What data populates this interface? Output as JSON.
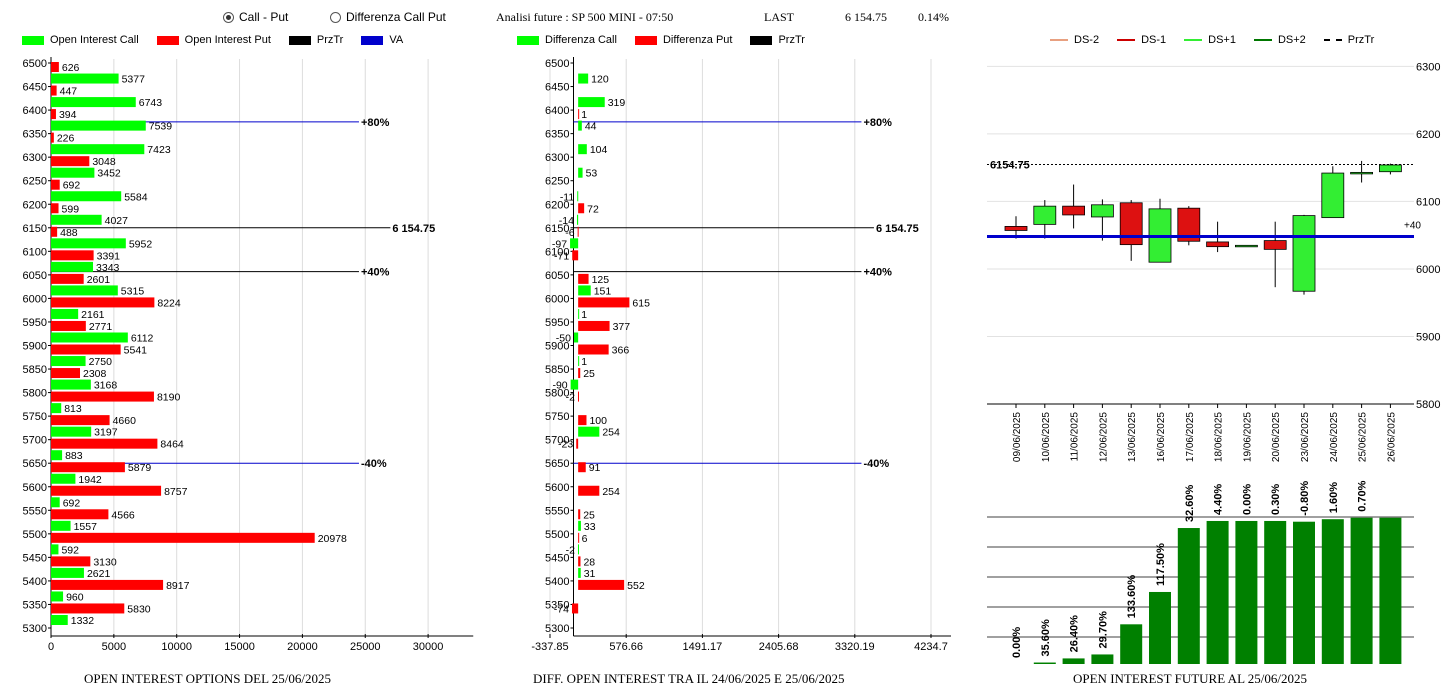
{
  "header": {
    "radio_call_put": "Call - Put",
    "radio_diff": "Differenza Call Put",
    "selected": "call_put",
    "title": "Analisi future : SP 500 MINI - 07:50",
    "last_label": "LAST",
    "last_value": "6 154.75",
    "last_change": "0.14%"
  },
  "colors": {
    "call": "#00ff00",
    "put": "#ff0000",
    "prztr": "#000000",
    "va": "#0000cc",
    "ds_minus2": "#e8a080",
    "ds_minus1": "#cc0000",
    "ds_plus1": "#33ee33",
    "ds_plus2": "#007700",
    "oi_bar": "#008000"
  },
  "chart_data": [
    {
      "id": "oi_options",
      "type": "bar",
      "orientation": "horizontal",
      "title": "OPEN INTEREST OPTIONS DEL 25/06/2025",
      "legend": [
        "Open Interest Call",
        "Open Interest Put",
        "PrzTr",
        "VA"
      ],
      "legend_placement": "top-left",
      "categories": [
        "6500",
        "6450",
        "6400",
        "6350",
        "6300",
        "6250",
        "6200",
        "6150",
        "6100",
        "6050",
        "6000",
        "5950",
        "5900",
        "5850",
        "5800",
        "5750",
        "5700",
        "5650",
        "5600",
        "5550",
        "5500",
        "5450",
        "5400",
        "5350",
        "5300"
      ],
      "series": [
        {
          "name": "Open Interest Call",
          "values": [
            null,
            5377,
            6743,
            7539,
            7423,
            3452,
            5584,
            4027,
            5952,
            3343,
            5315,
            2161,
            6112,
            2750,
            3168,
            813,
            3197,
            883,
            1942,
            692,
            1557,
            592,
            2621,
            960,
            1332
          ]
        },
        {
          "name": "Open Interest Put",
          "values": [
            626,
            447,
            394,
            226,
            3048,
            692,
            599,
            488,
            3391,
            2601,
            8224,
            2771,
            5541,
            2308,
            8190,
            4660,
            8464,
            5879,
            8757,
            4566,
            20978,
            3130,
            8917,
            5830,
            null
          ]
        }
      ],
      "x_ticks": [
        "0",
        "5000",
        "10000",
        "15000",
        "20000",
        "25000",
        "30000"
      ],
      "xlim": [
        0,
        32000
      ],
      "grid": true,
      "reference_lines": [
        {
          "level": 6375,
          "label": "+80%",
          "extent": 24500,
          "color": "#0000cc"
        },
        {
          "level": 6150,
          "label": "6 154.75",
          "extent": 27000,
          "color": "#000000"
        },
        {
          "level": 6057,
          "label": "+40%",
          "extent": 24500,
          "color": "#000000"
        },
        {
          "level": 5650,
          "label": "-40%",
          "extent": 24500,
          "color": "#0000cc"
        }
      ]
    },
    {
      "id": "diff_oi",
      "type": "bar",
      "orientation": "horizontal",
      "title": "DIFF. OPEN INTEREST TRA IL 24/06/2025 E 25/06/2025",
      "legend": [
        "Differenza Call",
        "Differenza Put",
        "PrzTr"
      ],
      "legend_placement": "top-left",
      "categories": [
        "6500",
        "6450",
        "6400",
        "6350",
        "6300",
        "6250",
        "6200",
        "6150",
        "6100",
        "6050",
        "6000",
        "5950",
        "5900",
        "5850",
        "5800",
        "5750",
        "5700",
        "5650",
        "5600",
        "5550",
        "5500",
        "5450",
        "5400",
        "5350",
        "5300"
      ],
      "series": [
        {
          "name": "Differenza Call",
          "values": [
            null,
            120,
            319,
            44,
            104,
            53,
            -11,
            -14,
            -97,
            null,
            151,
            1,
            -50,
            1,
            -90,
            null,
            254,
            null,
            null,
            null,
            33,
            -2,
            31,
            null,
            null
          ]
        },
        {
          "name": "Differenza Put",
          "values": [
            null,
            null,
            1,
            null,
            null,
            null,
            72,
            -6,
            -71,
            125,
            615,
            377,
            366,
            25,
            -2,
            100,
            -23,
            91,
            254,
            25,
            6,
            28,
            552,
            -74,
            null
          ]
        }
      ],
      "x_ticks": [
        "-337.85",
        "576.66",
        "1491.17",
        "2405.68",
        "3320.19",
        "4234.7"
      ],
      "xlim": [
        -337.85,
        4234.7
      ],
      "grid": true,
      "reference_lines": [
        {
          "level": 6375,
          "label": "+80%",
          "extent": 3400,
          "color": "#0000cc"
        },
        {
          "level": 6150,
          "label": "6 154.75",
          "extent": 3550,
          "color": "#000000"
        },
        {
          "level": 6057,
          "label": "+40%",
          "extent": 3400,
          "color": "#000000"
        },
        {
          "level": 5650,
          "label": "-40%",
          "extent": 3400,
          "color": "#0000cc"
        }
      ]
    },
    {
      "id": "candles",
      "type": "candlestick",
      "legend": [
        "DS-2",
        "DS-1",
        "DS+1",
        "DS+2",
        "PrzTr"
      ],
      "legend_placement": "top",
      "dates": [
        "09/06/2025",
        "10/06/2025",
        "11/06/2025",
        "12/06/2025",
        "13/06/2025",
        "16/06/2025",
        "17/06/2025",
        "18/06/2025",
        "19/06/2025",
        "20/06/2025",
        "23/06/2025",
        "24/06/2025",
        "25/06/2025",
        "26/06/2025"
      ],
      "ohlc": [
        [
          6063,
          6078,
          6045,
          6057
        ],
        [
          6066,
          6102,
          6045,
          6093
        ],
        [
          6093,
          6125,
          6060,
          6080
        ],
        [
          6077,
          6103,
          6042,
          6095
        ],
        [
          6098,
          6102,
          6012,
          6036
        ],
        [
          6010,
          6104,
          6010,
          6089
        ],
        [
          6090,
          6093,
          6035,
          6041
        ],
        [
          6040,
          6070,
          6025,
          6033
        ],
        [
          6035,
          6035,
          6035,
          6035
        ],
        [
          6042,
          6070,
          5973,
          6029
        ],
        [
          5967,
          6080,
          5962,
          6079
        ],
        [
          6076,
          6152,
          6076,
          6142
        ],
        [
          6143,
          6160,
          6128,
          6143
        ],
        [
          6144,
          6156,
          6140,
          6154
        ]
      ],
      "y_ticks": [
        "5800",
        "5900",
        "6000",
        "6100",
        "6200",
        "6300"
      ],
      "ylim": [
        5800,
        6305
      ],
      "prztr": 6154.75,
      "prztr_label": "6154.75",
      "va_level": 6048,
      "va_label": "+40",
      "grid": true
    },
    {
      "id": "oi_future",
      "type": "bar",
      "title": "OPEN INTEREST FUTURE AL 25/06/2025",
      "categories": [
        "09/06/2025",
        "10/06/2025",
        "11/06/2025",
        "12/06/2025",
        "13/06/2025",
        "16/06/2025",
        "17/06/2025",
        "18/06/2025",
        "19/06/2025",
        "20/06/2025",
        "23/06/2025",
        "24/06/2025",
        "25/06/2025",
        "26/06/2025"
      ],
      "values": [
        0.0,
        1.0,
        3.8,
        6.5,
        27.0,
        49.0,
        92.5,
        97.3,
        97.3,
        97.3,
        96.8,
        98.5,
        99.5,
        99.5
      ],
      "labels": [
        "0.00%",
        "35.60%",
        "26.40%",
        "29.70%",
        "133.60%",
        "117.50%",
        "32.60%",
        "4.40%",
        "0.00%",
        "0.30%",
        "-0.80%",
        "1.60%",
        "0.70%",
        ""
      ],
      "ylim": [
        0,
        100
      ],
      "grid": true
    }
  ]
}
